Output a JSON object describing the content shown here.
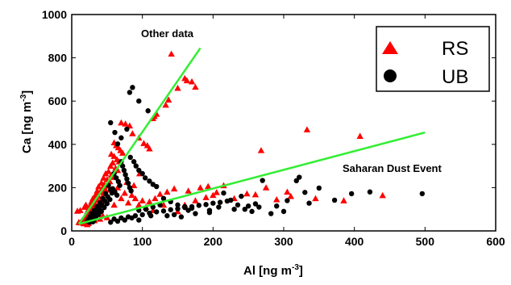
{
  "chart_data": {
    "type": "scatter",
    "xlabel_main": "Al [ng m",
    "xlabel_exp": "-3",
    "xlabel_close": "]",
    "ylabel_main": "Ca [ng m",
    "ylabel_exp": "-3",
    "ylabel_close": "]",
    "xlim": [
      0,
      600
    ],
    "ylim": [
      0,
      1000
    ],
    "xticks": [
      "0",
      "100",
      "200",
      "300",
      "400",
      "500",
      "600"
    ],
    "yticks": [
      "0",
      "200",
      "400",
      "600",
      "800",
      "1000"
    ],
    "grid": false,
    "legend_position": "top-right",
    "series": [
      {
        "name": "RS",
        "marker": "triangle",
        "color": "#ff0000",
        "points": [
          [
            141,
            818
          ],
          [
            160,
            705
          ],
          [
            163,
            695
          ],
          [
            170,
            690
          ],
          [
            175,
            665
          ],
          [
            150,
            660
          ],
          [
            137,
            606
          ],
          [
            133,
            582
          ],
          [
            120,
            540
          ],
          [
            115,
            520
          ],
          [
            117,
            530
          ],
          [
            70,
            500
          ],
          [
            76,
            495
          ],
          [
            82,
            486
          ],
          [
            86,
            450
          ],
          [
            95,
            430
          ],
          [
            102,
            405
          ],
          [
            107,
            395
          ],
          [
            110,
            380
          ],
          [
            60,
            408
          ],
          [
            63,
            395
          ],
          [
            66,
            385
          ],
          [
            69,
            372
          ],
          [
            72,
            360
          ],
          [
            56,
            355
          ],
          [
            60,
            345
          ],
          [
            64,
            330
          ],
          [
            67,
            320
          ],
          [
            58,
            315
          ],
          [
            55,
            300
          ],
          [
            62,
            290
          ],
          [
            65,
            280
          ],
          [
            52,
            275
          ],
          [
            48,
            265
          ],
          [
            56,
            258
          ],
          [
            60,
            248
          ],
          [
            45,
            245
          ],
          [
            50,
            238
          ],
          [
            54,
            228
          ],
          [
            42,
            222
          ],
          [
            46,
            215
          ],
          [
            52,
            208
          ],
          [
            38,
            205
          ],
          [
            44,
            198
          ],
          [
            48,
            190
          ],
          [
            36,
            185
          ],
          [
            40,
            178
          ],
          [
            46,
            172
          ],
          [
            34,
            168
          ],
          [
            38,
            160
          ],
          [
            43,
            152
          ],
          [
            30,
            150
          ],
          [
            36,
            144
          ],
          [
            41,
            138
          ],
          [
            28,
            135
          ],
          [
            33,
            128
          ],
          [
            38,
            122
          ],
          [
            26,
            118
          ],
          [
            31,
            112
          ],
          [
            36,
            106
          ],
          [
            24,
            102
          ],
          [
            29,
            96
          ],
          [
            34,
            90
          ],
          [
            22,
            88
          ],
          [
            27,
            82
          ],
          [
            32,
            76
          ],
          [
            20,
            75
          ],
          [
            25,
            70
          ],
          [
            30,
            64
          ],
          [
            18,
            62
          ],
          [
            23,
            58
          ],
          [
            28,
            52
          ],
          [
            16,
            52
          ],
          [
            21,
            48
          ],
          [
            26,
            44
          ],
          [
            14,
            45
          ],
          [
            19,
            40
          ],
          [
            24,
            36
          ],
          [
            12,
            38
          ],
          [
            17,
            34
          ],
          [
            22,
            30
          ],
          [
            10,
            40
          ],
          [
            8,
            92
          ],
          [
            12,
            95
          ],
          [
            20,
            120
          ],
          [
            18,
            110
          ],
          [
            35,
            160
          ],
          [
            45,
            180
          ],
          [
            55,
            190
          ],
          [
            65,
            200
          ],
          [
            75,
            175
          ],
          [
            85,
            165
          ],
          [
            90,
            150
          ],
          [
            100,
            140
          ],
          [
            110,
            135
          ],
          [
            70,
            150
          ],
          [
            80,
            130
          ],
          [
            95,
            120
          ],
          [
            105,
            110
          ],
          [
            60,
            120
          ],
          [
            88,
            210
          ],
          [
            78,
            225
          ],
          [
            96,
            265
          ],
          [
            118,
            150
          ],
          [
            130,
            120
          ],
          [
            145,
            195
          ],
          [
            165,
            185
          ],
          [
            182,
            200
          ],
          [
            193,
            206
          ],
          [
            205,
            178
          ],
          [
            215,
            210
          ],
          [
            248,
            172
          ],
          [
            260,
            168
          ],
          [
            268,
            372
          ],
          [
            275,
            200
          ],
          [
            305,
            180
          ],
          [
            333,
            468
          ],
          [
            345,
            150
          ],
          [
            385,
            140
          ],
          [
            408,
            438
          ],
          [
            440,
            164
          ],
          [
            310,
            160
          ],
          [
            290,
            145
          ],
          [
            200,
            165
          ],
          [
            230,
            150
          ],
          [
            160,
            120
          ],
          [
            175,
            140
          ],
          [
            190,
            155
          ],
          [
            125,
            170
          ],
          [
            135,
            180
          ],
          [
            150,
            90
          ],
          [
            115,
            95
          ],
          [
            50,
            62
          ],
          [
            40,
            55
          ],
          [
            32,
            48
          ],
          [
            44,
            70
          ]
        ]
      },
      {
        "name": "UB",
        "marker": "circle",
        "color": "#000000",
        "points": [
          [
            86,
            663
          ],
          [
            82,
            640
          ],
          [
            108,
            555
          ],
          [
            95,
            600
          ],
          [
            55,
            500
          ],
          [
            61,
            455
          ],
          [
            70,
            430
          ],
          [
            65,
            402
          ],
          [
            78,
            470
          ],
          [
            83,
            340
          ],
          [
            88,
            320
          ],
          [
            91,
            300
          ],
          [
            95,
            280
          ],
          [
            100,
            265
          ],
          [
            104,
            245
          ],
          [
            110,
            230
          ],
          [
            115,
            215
          ],
          [
            120,
            205
          ],
          [
            70,
            320
          ],
          [
            72,
            300
          ],
          [
            74,
            280
          ],
          [
            76,
            260
          ],
          [
            78,
            240
          ],
          [
            80,
            220
          ],
          [
            82,
            200
          ],
          [
            84,
            185
          ],
          [
            60,
            265
          ],
          [
            63,
            245
          ],
          [
            66,
            228
          ],
          [
            68,
            210
          ],
          [
            58,
            195
          ],
          [
            61,
            180
          ],
          [
            64,
            165
          ],
          [
            52,
            210
          ],
          [
            55,
            190
          ],
          [
            57,
            175
          ],
          [
            48,
            172
          ],
          [
            51,
            158
          ],
          [
            54,
            145
          ],
          [
            44,
            150
          ],
          [
            47,
            138
          ],
          [
            50,
            126
          ],
          [
            40,
            130
          ],
          [
            43,
            118
          ],
          [
            46,
            108
          ],
          [
            36,
            112
          ],
          [
            39,
            100
          ],
          [
            42,
            90
          ],
          [
            32,
            95
          ],
          [
            35,
            85
          ],
          [
            38,
            76
          ],
          [
            28,
            80
          ],
          [
            31,
            72
          ],
          [
            34,
            64
          ],
          [
            26,
            66
          ],
          [
            29,
            58
          ],
          [
            32,
            52
          ],
          [
            24,
            55
          ],
          [
            27,
            48
          ],
          [
            30,
            42
          ],
          [
            22,
            46
          ],
          [
            25,
            40
          ],
          [
            60,
            55
          ],
          [
            70,
            60
          ],
          [
            80,
            65
          ],
          [
            90,
            70
          ],
          [
            100,
            75
          ],
          [
            110,
            82
          ],
          [
            120,
            88
          ],
          [
            130,
            92
          ],
          [
            140,
            98
          ],
          [
            150,
            102
          ],
          [
            160,
            108
          ],
          [
            170,
            112
          ],
          [
            180,
            118
          ],
          [
            190,
            122
          ],
          [
            200,
            128
          ],
          [
            210,
            132
          ],
          [
            220,
            138
          ],
          [
            225,
            142
          ],
          [
            235,
            120
          ],
          [
            245,
            100
          ],
          [
            255,
            90
          ],
          [
            265,
            110
          ],
          [
            282,
            80
          ],
          [
            300,
            90
          ],
          [
            318,
            232
          ],
          [
            322,
            248
          ],
          [
            330,
            178
          ],
          [
            336,
            128
          ],
          [
            350,
            198
          ],
          [
            372,
            142
          ],
          [
            396,
            172
          ],
          [
            422,
            180
          ],
          [
            496,
            172
          ],
          [
            290,
            115
          ],
          [
            305,
            140
          ],
          [
            240,
            160
          ],
          [
            215,
            175
          ],
          [
            130,
            150
          ],
          [
            140,
            135
          ],
          [
            150,
            120
          ],
          [
            160,
            112
          ],
          [
            170,
            105
          ],
          [
            95,
            95
          ],
          [
            105,
            100
          ],
          [
            115,
            110
          ],
          [
            125,
            120
          ],
          [
            85,
            60
          ],
          [
            75,
            50
          ],
          [
            65,
            45
          ],
          [
            55,
            40
          ],
          [
            112,
            70
          ],
          [
            95,
            50
          ],
          [
            155,
            65
          ],
          [
            175,
            80
          ],
          [
            195,
            95
          ],
          [
            270,
            233
          ],
          [
            260,
            125
          ],
          [
            195,
            85
          ],
          [
            208,
            110
          ],
          [
            230,
            100
          ],
          [
            250,
            115
          ],
          [
            145,
            75
          ],
          [
            135,
            70
          ],
          [
            165,
            95
          ]
        ]
      }
    ],
    "fit_lines": [
      {
        "label": "Other data",
        "color": "#33ee33",
        "from": [
          10,
          32
        ],
        "to": [
          182,
          845
        ]
      },
      {
        "label": "Saharan Dust Event",
        "color": "#33ee33",
        "from": [
          10,
          32
        ],
        "to": [
          500,
          455
        ]
      }
    ]
  }
}
